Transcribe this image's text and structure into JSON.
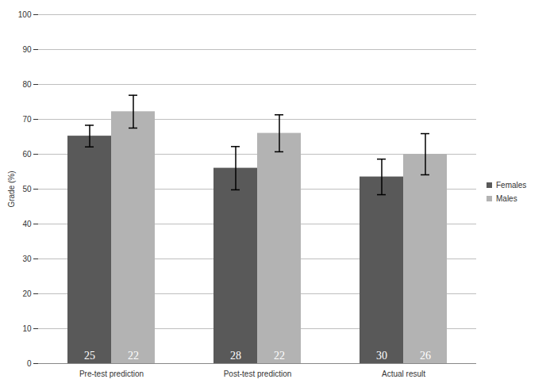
{
  "chart_data": {
    "type": "bar",
    "y_label": "Grade (%)",
    "categories": [
      "Pre-test prediction",
      "Post-test prediction",
      "Actual result"
    ],
    "series": [
      {
        "name": "Females",
        "color": "#595959",
        "values": [
          65.2,
          56,
          53.5
        ],
        "error": [
          3.1,
          6.2,
          5.1
        ],
        "n": [
          25,
          28,
          30
        ]
      },
      {
        "name": "Males",
        "color": "#b3b3b3",
        "values": [
          72.2,
          66,
          60
        ],
        "error": [
          4.7,
          5.3,
          5.9
        ],
        "n": [
          22,
          22,
          26
        ]
      }
    ],
    "ylim": [
      0,
      100
    ],
    "yticks": [
      0,
      10,
      20,
      30,
      40,
      50,
      60,
      70,
      80,
      90,
      100
    ],
    "grid": true,
    "legend": "right"
  }
}
